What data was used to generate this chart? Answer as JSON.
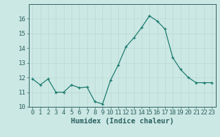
{
  "x": [
    0,
    1,
    2,
    3,
    4,
    5,
    6,
    7,
    8,
    9,
    10,
    11,
    12,
    13,
    14,
    15,
    16,
    17,
    18,
    19,
    20,
    21,
    22,
    23
  ],
  "y": [
    11.9,
    11.5,
    11.9,
    11.0,
    11.0,
    11.5,
    11.3,
    11.35,
    10.35,
    10.2,
    11.8,
    12.85,
    14.1,
    14.7,
    15.4,
    16.2,
    15.85,
    15.3,
    13.35,
    12.55,
    12.0,
    11.65,
    11.65,
    11.65
  ],
  "xlabel": "Humidex (Indice chaleur)",
  "ylim": [
    10,
    17
  ],
  "xlim": [
    -0.5,
    23.5
  ],
  "yticks": [
    10,
    11,
    12,
    13,
    14,
    15,
    16
  ],
  "xticks": [
    0,
    1,
    2,
    3,
    4,
    5,
    6,
    7,
    8,
    9,
    10,
    11,
    12,
    13,
    14,
    15,
    16,
    17,
    18,
    19,
    20,
    21,
    22,
    23
  ],
  "line_color": "#1a7a6e",
  "marker": "+",
  "bg_color": "#cce8e4",
  "grid_color": "#b8d8d4",
  "axis_color": "#2a6060",
  "tick_fontsize": 6.5,
  "xlabel_fontsize": 7.5
}
